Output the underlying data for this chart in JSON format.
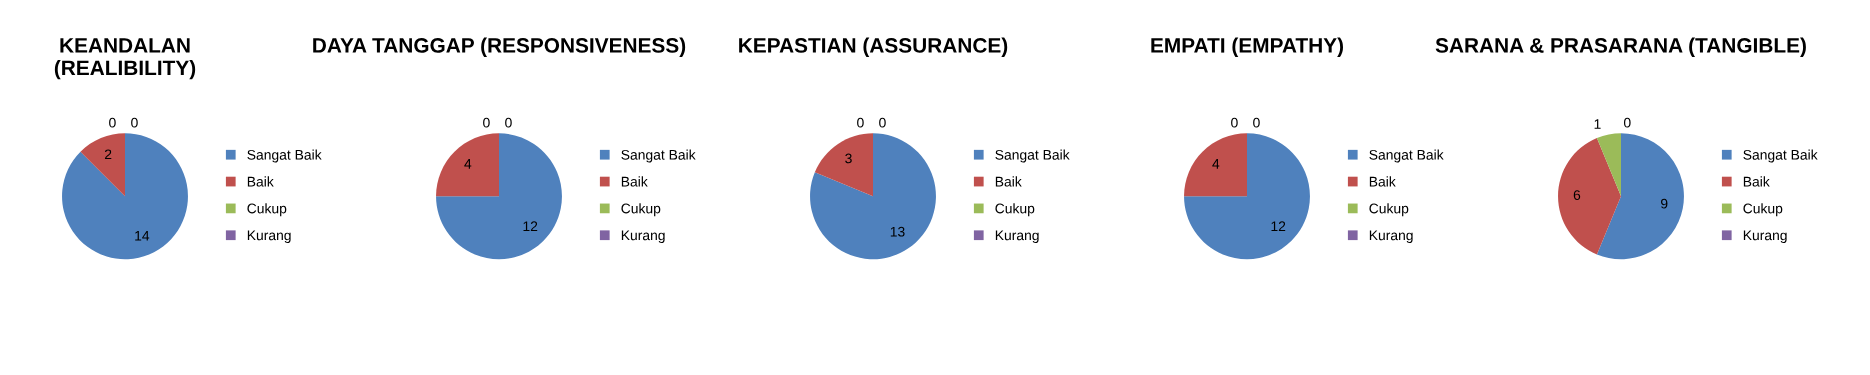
{
  "chart_data": [
    {
      "type": "pie",
      "title": "KEANDALAN (REALIBILITY)",
      "categories": [
        "Sangat Baik",
        "Baik",
        "Cukup",
        "Kurang"
      ],
      "values": [
        14,
        2,
        0,
        0
      ],
      "value_labels": [
        "14",
        "2",
        "0",
        "0"
      ],
      "colors": [
        "#4f81bd",
        "#c0504d",
        "#9bbb59",
        "#8064a2"
      ],
      "legend": "right"
    },
    {
      "type": "pie",
      "title": "DAYA TANGGAP (RESPONSIVENESS)",
      "categories": [
        "Sangat Baik",
        "Baik",
        "Cukup",
        "Kurang"
      ],
      "values": [
        12,
        4,
        0,
        0
      ],
      "value_labels": [
        "12",
        "4",
        "0",
        "0"
      ],
      "colors": [
        "#4f81bd",
        "#c0504d",
        "#9bbb59",
        "#8064a2"
      ],
      "legend": "right"
    },
    {
      "type": "pie",
      "title": "KEPASTIAN (ASSURANCE)",
      "categories": [
        "Sangat Baik",
        "Baik",
        "Cukup",
        "Kurang"
      ],
      "values": [
        13,
        3,
        0,
        0
      ],
      "value_labels": [
        "13",
        "3",
        "0",
        "0"
      ],
      "colors": [
        "#4f81bd",
        "#c0504d",
        "#9bbb59",
        "#8064a2"
      ],
      "legend": "right"
    },
    {
      "type": "pie",
      "title": "EMPATI (EMPATHY)",
      "categories": [
        "Sangat Baik",
        "Baik",
        "Cukup",
        "Kurang"
      ],
      "values": [
        12,
        4,
        0,
        0
      ],
      "value_labels": [
        "12",
        "4",
        "0",
        "0"
      ],
      "colors": [
        "#4f81bd",
        "#c0504d",
        "#9bbb59",
        "#8064a2"
      ],
      "legend": "right"
    },
    {
      "type": "pie",
      "title": "SARANA & PRASARANA (TANGIBLE)",
      "categories": [
        "Sangat Baik",
        "Baik",
        "Cukup",
        "Kurang"
      ],
      "values": [
        9,
        6,
        1,
        0
      ],
      "value_labels": [
        "9",
        "6",
        "1",
        "0"
      ],
      "colors": [
        "#4f81bd",
        "#c0504d",
        "#9bbb59",
        "#8064a2"
      ],
      "legend": "right"
    }
  ]
}
